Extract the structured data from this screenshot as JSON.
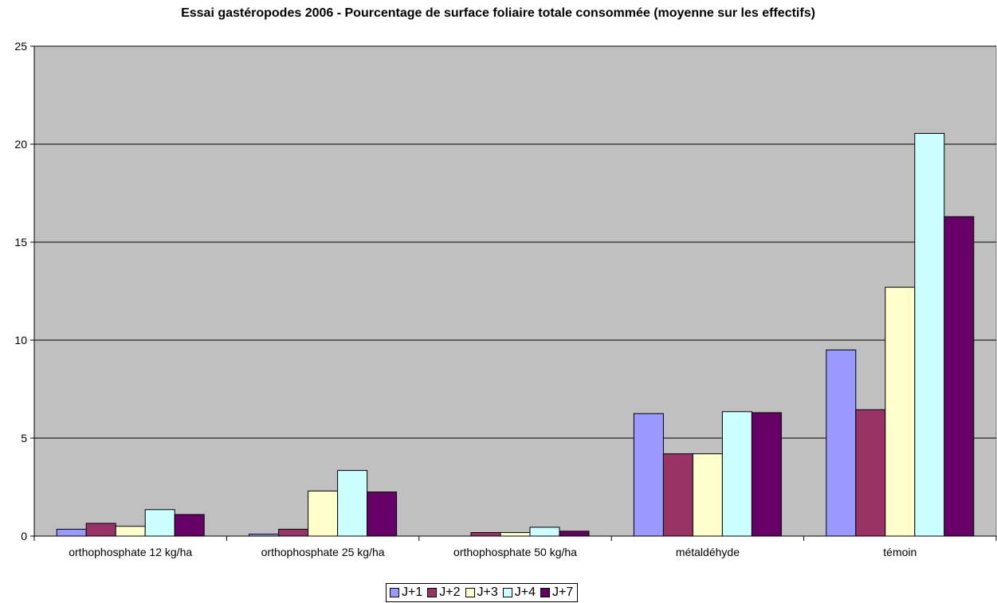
{
  "chart_data": {
    "type": "bar",
    "title": "Essai gastéropodes 2006 - Pourcentage de surface foliaire totale consommée (moyenne sur les effectifs)",
    "categories": [
      "orthophosphate 12 kg/ha",
      "orthophosphate 25 kg/ha",
      "orthophosphate 50 kg/ha",
      "métaldéhyde",
      "témoin"
    ],
    "series": [
      {
        "name": "J+1",
        "color": "#9999ff",
        "values": [
          0.35,
          0.1,
          0.0,
          6.25,
          9.5
        ]
      },
      {
        "name": "J+2",
        "color": "#993366",
        "values": [
          0.65,
          0.35,
          0.18,
          4.2,
          6.45
        ]
      },
      {
        "name": "J+3",
        "color": "#ffffcc",
        "values": [
          0.5,
          2.3,
          0.18,
          4.2,
          12.7
        ]
      },
      {
        "name": "J+4",
        "color": "#ccffff",
        "values": [
          1.35,
          3.35,
          0.45,
          6.35,
          20.55
        ]
      },
      {
        "name": "J+7",
        "color": "#660066",
        "values": [
          1.1,
          2.25,
          0.25,
          6.3,
          16.3
        ]
      }
    ],
    "yticks": [
      "0",
      "5",
      "10",
      "15",
      "20",
      "25"
    ],
    "ylim": [
      0,
      25
    ],
    "xlabel": "",
    "ylabel": "",
    "grid": true,
    "plot_background": "#c0c0c0",
    "legend_position": "bottom"
  }
}
